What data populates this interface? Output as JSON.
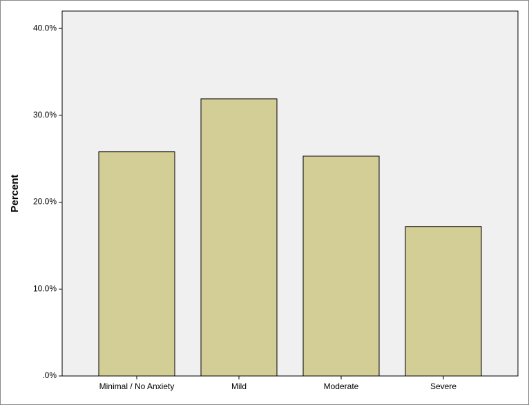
{
  "chart_data": {
    "type": "bar",
    "y_label": "Percent",
    "categories": [
      "Minimal / No Anxiety",
      "Mild",
      "Moderate",
      "Severe"
    ],
    "values": [
      25.8,
      31.9,
      25.3,
      17.2
    ],
    "color": "#d3cd96",
    "ylim": [
      0,
      42
    ],
    "yticks": [
      {
        "value": 0,
        "label": ".0%"
      },
      {
        "value": 10,
        "label": "10.0%"
      },
      {
        "value": 20,
        "label": "20.0%"
      },
      {
        "value": 30,
        "label": "30.0%"
      },
      {
        "value": 40,
        "label": "40.0%"
      }
    ],
    "grid": false
  }
}
